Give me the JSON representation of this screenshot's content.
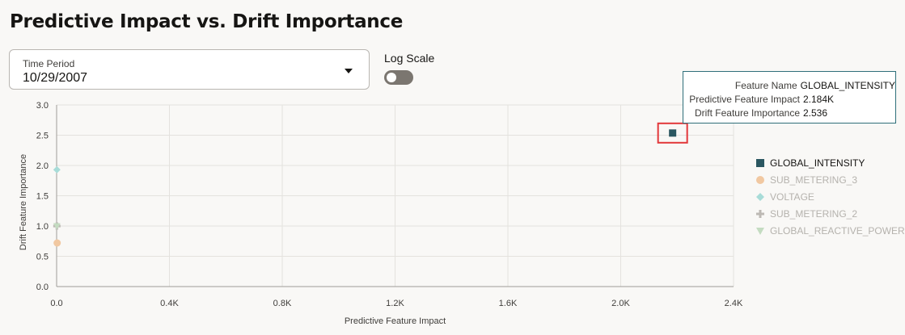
{
  "page": {
    "title": "Predictive Impact vs. Drift Importance"
  },
  "controls": {
    "time_period_label": "Time Period",
    "time_period_value": "10/29/2007",
    "log_scale_label": "Log Scale",
    "log_scale_on": false
  },
  "tooltip": {
    "rows": [
      {
        "key": "Feature Name",
        "value": "GLOBAL_INTENSITY"
      },
      {
        "key": "Predictive Feature Impact",
        "value": "2.184K"
      },
      {
        "key": "Drift Feature Importance",
        "value": "2.536"
      }
    ]
  },
  "colors": {
    "highlight_box": "#e2373a",
    "grid": "#e4e2de",
    "axis": "#a09d98"
  },
  "chart_data": {
    "type": "scatter",
    "title": "",
    "xlabel": "Predictive Feature Impact",
    "ylabel": "Drift Feature Importance",
    "xlim": [
      0,
      2400
    ],
    "ylim": [
      0,
      3.0
    ],
    "x_ticks": [
      0,
      400,
      800,
      1200,
      1600,
      2000,
      2400
    ],
    "x_tick_labels": [
      "0.0",
      "0.4K",
      "0.8K",
      "1.2K",
      "1.6K",
      "2.0K",
      "2.4K"
    ],
    "y_ticks": [
      0,
      0.5,
      1.0,
      1.5,
      2.0,
      2.5,
      3.0
    ],
    "y_tick_labels": [
      "0.0",
      "0.5",
      "1.0",
      "1.5",
      "2.0",
      "2.5",
      "3.0"
    ],
    "grid": true,
    "legend_position": "right",
    "selected_series": "GLOBAL_INTENSITY",
    "series": [
      {
        "name": "GLOBAL_INTENSITY",
        "marker": "square",
        "color": "#2b5761",
        "x": [
          2184
        ],
        "y": [
          2.536
        ]
      },
      {
        "name": "SUB_METERING_3",
        "marker": "circle",
        "color": "#f1c8a1",
        "x": [
          2
        ],
        "y": [
          0.72
        ]
      },
      {
        "name": "VOLTAGE",
        "marker": "diamond",
        "color": "#a8dcd8",
        "x": [
          1
        ],
        "y": [
          1.93
        ]
      },
      {
        "name": "SUB_METERING_2",
        "marker": "plus",
        "color": "#bdb9b4",
        "x": [
          1
        ],
        "y": [
          1.0
        ]
      },
      {
        "name": "GLOBAL_REACTIVE_POWER",
        "marker": "triangle-down",
        "color": "#c4dcc1",
        "x": [
          1
        ],
        "y": [
          1.0
        ]
      }
    ]
  }
}
